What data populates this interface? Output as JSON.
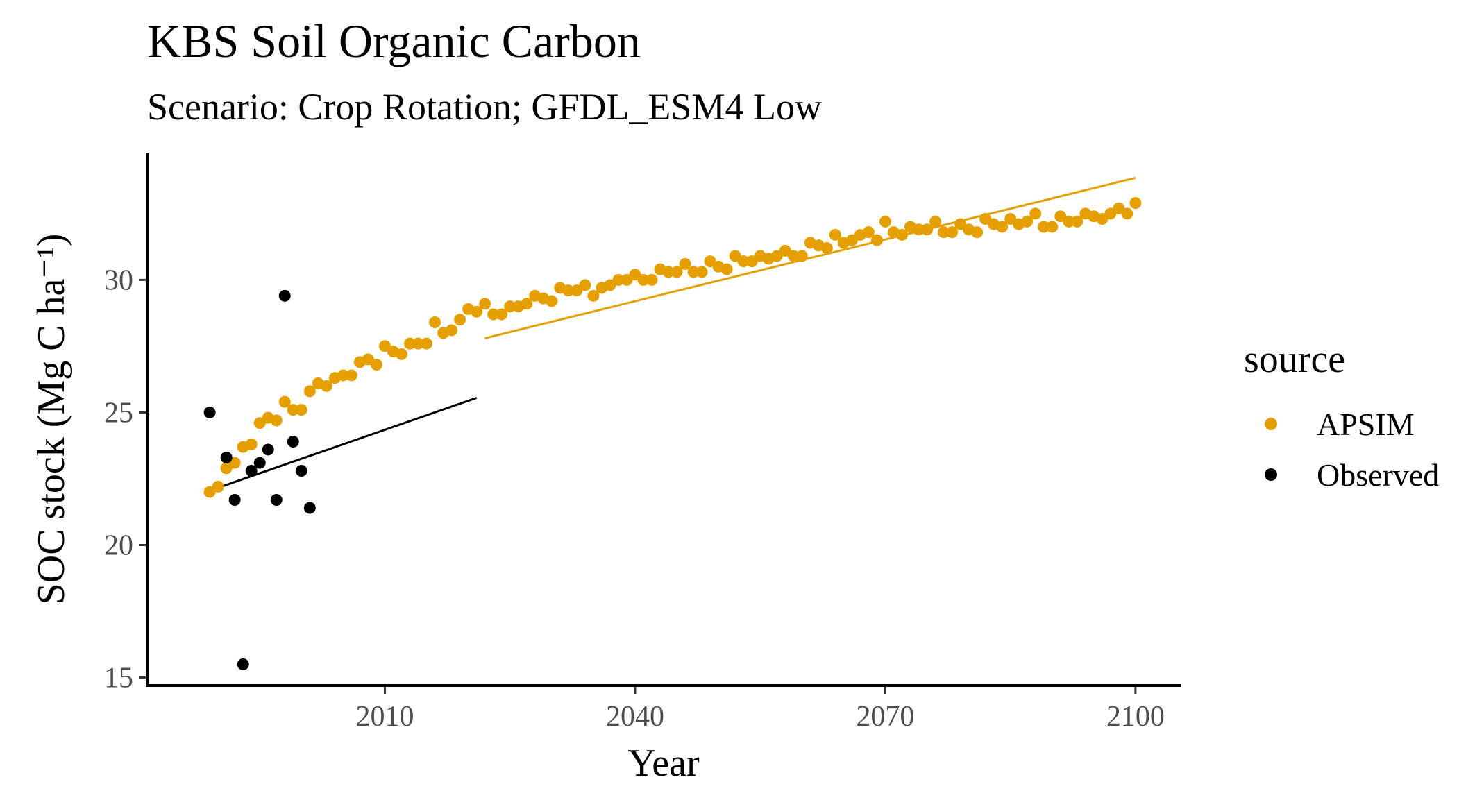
{
  "chart_data": {
    "type": "scatter",
    "title": "KBS Soil Organic Carbon",
    "subtitle": "Scenario: Crop Rotation; GFDL_ESM4 Low",
    "xlabel": "Year",
    "ylabel": "SOC stock (Mg C ha⁻¹)",
    "xlim": [
      1981.5,
      2105.5
    ],
    "ylim": [
      14.7,
      34.8
    ],
    "x_ticks": [
      2010,
      2040,
      2070,
      2100
    ],
    "y_ticks": [
      15,
      20,
      25,
      30
    ],
    "grid": false,
    "legend": {
      "title": "source",
      "position": "right",
      "entries": [
        "APSIM",
        "Observed"
      ]
    },
    "series": [
      {
        "name": "APSIM",
        "color": "#E69F00",
        "x": [
          1989,
          1990,
          1991,
          1992,
          1993,
          1994,
          1995,
          1996,
          1997,
          1998,
          1999,
          2000,
          2001,
          2002,
          2003,
          2004,
          2005,
          2006,
          2007,
          2008,
          2009,
          2010,
          2011,
          2012,
          2013,
          2014,
          2015,
          2016,
          2017,
          2018,
          2019,
          2020,
          2021,
          2022,
          2023,
          2024,
          2025,
          2026,
          2027,
          2028,
          2029,
          2030,
          2031,
          2032,
          2033,
          2034,
          2035,
          2036,
          2037,
          2038,
          2039,
          2040,
          2041,
          2042,
          2043,
          2044,
          2045,
          2046,
          2047,
          2048,
          2049,
          2050,
          2051,
          2052,
          2053,
          2054,
          2055,
          2056,
          2057,
          2058,
          2059,
          2060,
          2061,
          2062,
          2063,
          2064,
          2065,
          2066,
          2067,
          2068,
          2069,
          2070,
          2071,
          2072,
          2073,
          2074,
          2075,
          2076,
          2077,
          2078,
          2079,
          2080,
          2081,
          2082,
          2083,
          2084,
          2085,
          2086,
          2087,
          2088,
          2089,
          2090,
          2091,
          2092,
          2093,
          2094,
          2095,
          2096,
          2097,
          2098,
          2099,
          2100
        ],
        "values": [
          22.0,
          22.2,
          22.9,
          23.1,
          23.7,
          23.8,
          24.6,
          24.8,
          24.7,
          25.4,
          25.1,
          25.1,
          25.8,
          26.1,
          26.0,
          26.3,
          26.4,
          26.4,
          26.9,
          27.0,
          26.8,
          27.5,
          27.3,
          27.2,
          27.6,
          27.6,
          27.6,
          28.4,
          28.0,
          28.1,
          28.5,
          28.9,
          28.8,
          29.1,
          28.7,
          28.7,
          29.0,
          29.0,
          29.1,
          29.4,
          29.3,
          29.2,
          29.7,
          29.6,
          29.6,
          29.8,
          29.4,
          29.7,
          29.8,
          30.0,
          30.0,
          30.2,
          30.0,
          30.0,
          30.4,
          30.3,
          30.3,
          30.6,
          30.3,
          30.3,
          30.7,
          30.5,
          30.4,
          30.9,
          30.7,
          30.7,
          30.9,
          30.8,
          30.9,
          31.1,
          30.9,
          30.9,
          31.4,
          31.3,
          31.2,
          31.7,
          31.4,
          31.5,
          31.7,
          31.8,
          31.5,
          32.2,
          31.8,
          31.7,
          32.0,
          31.9,
          31.9,
          32.2,
          31.8,
          31.8,
          32.1,
          31.9,
          31.8,
          32.3,
          32.1,
          32.0,
          32.3,
          32.1,
          32.2,
          32.5,
          32.0,
          32.0,
          32.4,
          32.2,
          32.2,
          32.5,
          32.4,
          32.3,
          32.5,
          32.7,
          32.5,
          32.9
        ]
      },
      {
        "name": "Observed",
        "color": "#000000",
        "x": [
          1989,
          1991,
          1992,
          1993,
          1994,
          1995,
          1996,
          1997,
          1998,
          1999,
          2000,
          2001
        ],
        "values": [
          25.0,
          23.3,
          21.7,
          15.5,
          22.8,
          23.1,
          23.6,
          21.7,
          29.4,
          23.9,
          22.8,
          21.4
        ]
      }
    ],
    "trendlines": [
      {
        "name": "Observed",
        "color": "#000000",
        "x": [
          1989,
          2021
        ],
        "y": [
          22.05,
          25.55
        ]
      },
      {
        "name": "APSIM",
        "color": "#E69F00",
        "x": [
          2022,
          2100
        ],
        "y": [
          27.8,
          33.85
        ]
      }
    ]
  }
}
